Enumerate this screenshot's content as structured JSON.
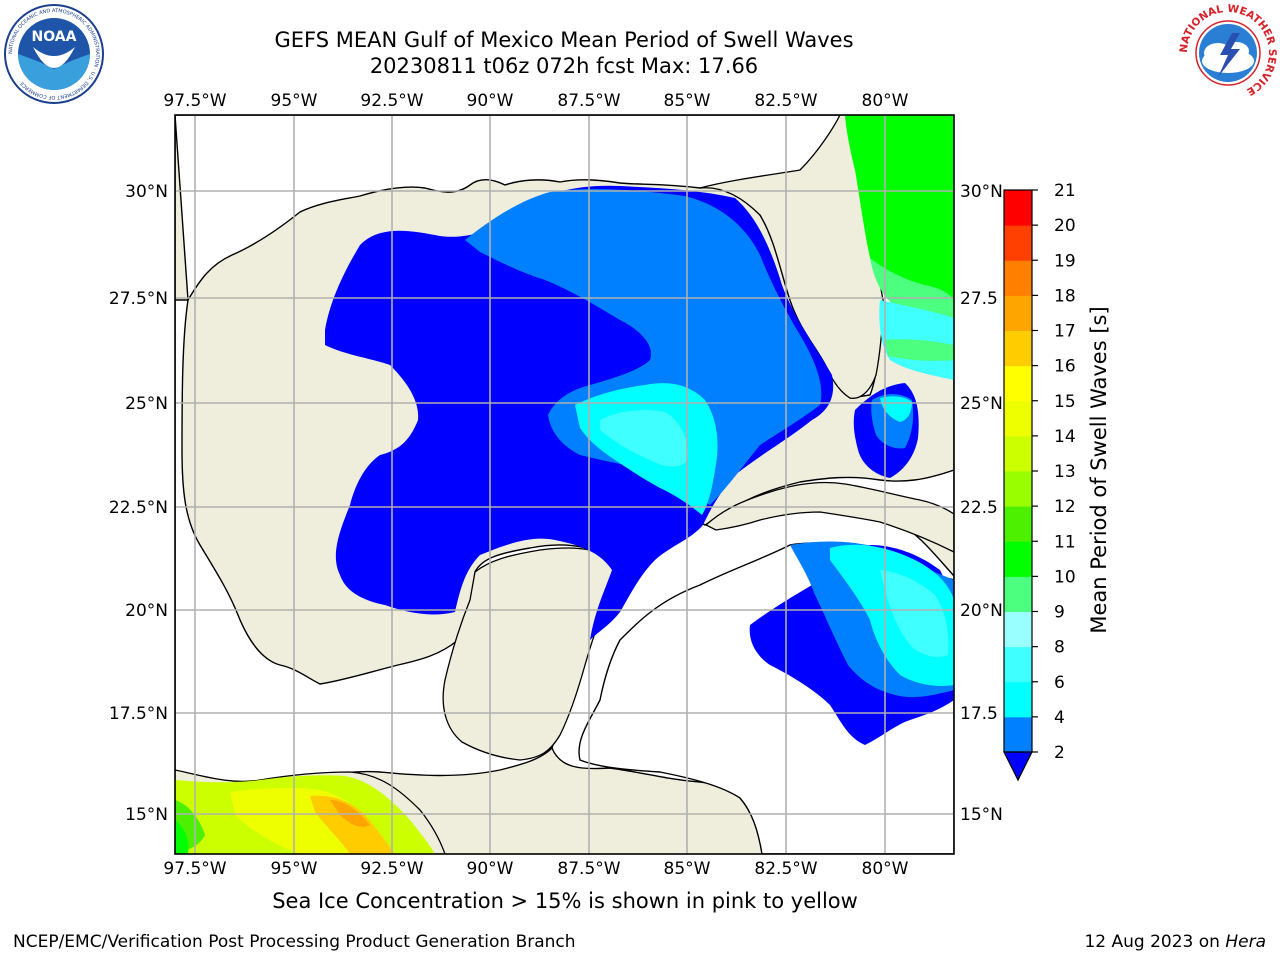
{
  "header": {
    "title_line1": "GEFS MEAN Gulf of Mexico Mean Period of Swell Waves",
    "title_line2": "20230811 t06z 072h fcst   Max: 17.66"
  },
  "logos": {
    "noaa_text": "NOAA",
    "noaa_ring_text": "NATIONAL OCEANIC AND ATMOSPHERIC ADMINISTRATION · U.S. DEPARTMENT OF COMMERCE",
    "nws_ring_text": "NATIONAL WEATHER SERVICE"
  },
  "map": {
    "lon_labels": [
      "97.5°W",
      "95°W",
      "92.5°W",
      "90°W",
      "87.5°W",
      "85°W",
      "82.5°W",
      "80°W"
    ],
    "lat_labels_left": [
      "30°N",
      "27.5°N",
      "25°N",
      "22.5°N",
      "20°N",
      "17.5°N",
      "15°N"
    ],
    "lat_labels_right": [
      "30°N",
      "27.5",
      "25°N",
      "22.5",
      "20°N",
      "17.5",
      "15°N"
    ],
    "colors": {
      "land": "#efeedd",
      "water": "#ffffff",
      "grid": "#b0b0b0"
    }
  },
  "colorbar": {
    "label": "Mean Period of Swell Waves [s]",
    "ticks": [
      "2",
      "4",
      "6",
      "8",
      "9",
      "10",
      "11",
      "12",
      "13",
      "14",
      "15",
      "16",
      "17",
      "18",
      "19",
      "20",
      "21"
    ],
    "colors": [
      "#0000ff",
      "#007fff",
      "#00ffff",
      "#3fffff",
      "#99ffff",
      "#4cff7f",
      "#00ff00",
      "#4cf000",
      "#99ff00",
      "#ccff00",
      "#eeff00",
      "#ffff00",
      "#ffcc00",
      "#ffa500",
      "#ff8000",
      "#ff4000",
      "#ff0000"
    ],
    "under_color": "#0000ff"
  },
  "subtitle": "Sea Ice Concentration > 15% is shown in pink to yellow",
  "footer": {
    "left": "NCEP/EMC/Verification Post Processing Product Generation Branch",
    "right_prefix": "12 Aug 2023 on ",
    "right_italic": "Hera"
  }
}
